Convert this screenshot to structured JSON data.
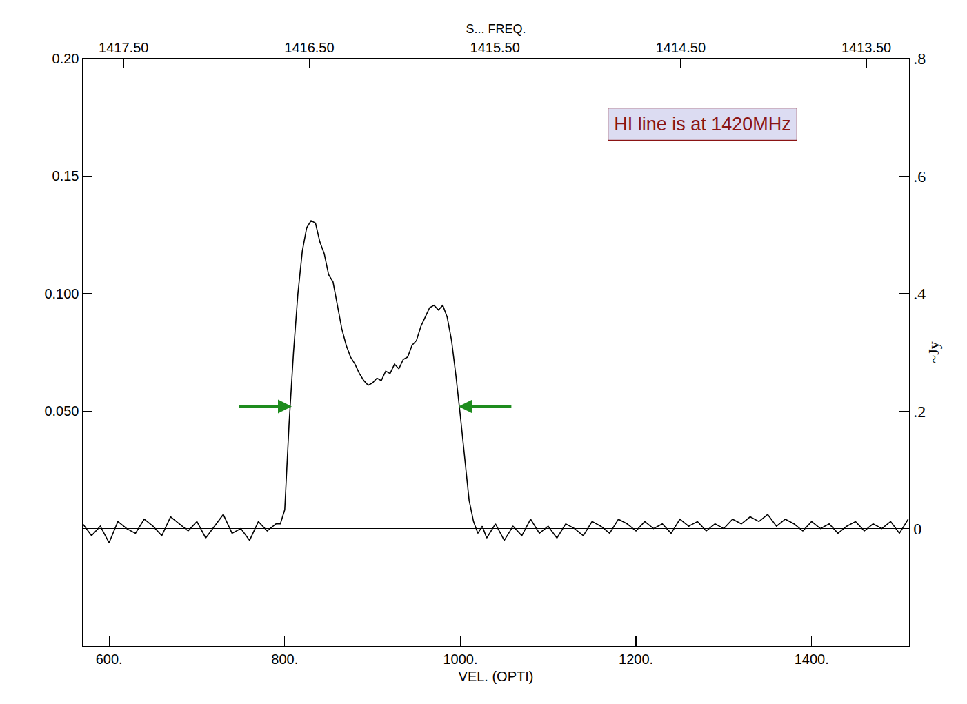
{
  "chart_data": {
    "type": "line",
    "color": "#000000",
    "xlabel": "VEL. (OPTI)",
    "x": [
      570,
      580,
      590,
      600,
      610,
      620,
      630,
      640,
      650,
      660,
      670,
      680,
      690,
      700,
      710,
      720,
      730,
      740,
      750,
      760,
      770,
      780,
      790,
      795,
      800,
      805,
      810,
      815,
      820,
      825,
      830,
      835,
      840,
      845,
      850,
      855,
      860,
      865,
      870,
      875,
      880,
      885,
      890,
      895,
      900,
      905,
      910,
      915,
      920,
      925,
      930,
      935,
      940,
      945,
      950,
      955,
      960,
      965,
      970,
      975,
      980,
      985,
      990,
      995,
      1000,
      1005,
      1010,
      1015,
      1020,
      1025,
      1030,
      1040,
      1050,
      1060,
      1070,
      1080,
      1090,
      1100,
      1110,
      1120,
      1130,
      1140,
      1150,
      1160,
      1170,
      1180,
      1190,
      1200,
      1210,
      1220,
      1230,
      1240,
      1250,
      1260,
      1270,
      1280,
      1290,
      1300,
      1310,
      1320,
      1330,
      1340,
      1350,
      1360,
      1370,
      1380,
      1390,
      1400,
      1410,
      1420,
      1430,
      1440,
      1450,
      1460,
      1470,
      1480,
      1490,
      1500,
      1510
    ],
    "values": [
      0.002,
      -0.003,
      0.001,
      -0.006,
      0.003,
      0.0,
      -0.002,
      0.004,
      0.001,
      -0.003,
      0.005,
      0.002,
      -0.001,
      0.003,
      -0.004,
      0.001,
      0.006,
      -0.002,
      0.0,
      -0.005,
      0.003,
      -0.001,
      0.002,
      0.002,
      0.008,
      0.045,
      0.075,
      0.1,
      0.118,
      0.128,
      0.131,
      0.13,
      0.122,
      0.117,
      0.108,
      0.105,
      0.095,
      0.085,
      0.078,
      0.073,
      0.07,
      0.066,
      0.063,
      0.061,
      0.062,
      0.064,
      0.063,
      0.067,
      0.066,
      0.07,
      0.068,
      0.072,
      0.073,
      0.078,
      0.08,
      0.086,
      0.09,
      0.094,
      0.095,
      0.093,
      0.095,
      0.09,
      0.08,
      0.065,
      0.048,
      0.03,
      0.012,
      0.003,
      -0.002,
      0.001,
      -0.004,
      0.002,
      -0.005,
      0.001,
      -0.003,
      0.004,
      -0.002,
      0.001,
      -0.004,
      0.002,
      0.0,
      -0.003,
      0.003,
      0.001,
      -0.002,
      0.004,
      0.002,
      -0.001,
      0.003,
      0.0,
      0.002,
      -0.002,
      0.004,
      0.001,
      0.003,
      -0.001,
      0.002,
      0.0,
      0.004,
      0.002,
      0.005,
      0.003,
      0.006,
      0.001,
      0.004,
      0.002,
      -0.001,
      0.003,
      0.0,
      0.002,
      -0.002,
      0.001,
      0.003,
      -0.001,
      0.002,
      0.0,
      0.003,
      -0.002,
      0.004
    ],
    "xlim": [
      570,
      1511
    ],
    "xticks": [
      {
        "value": 600,
        "label": "600."
      },
      {
        "value": 800,
        "label": "800."
      },
      {
        "value": 1000,
        "label": "1000."
      },
      {
        "value": 1200,
        "label": "1200."
      },
      {
        "value": 1400,
        "label": "1400."
      }
    ],
    "ylim": [
      -0.05,
      0.2
    ],
    "yticks": [
      {
        "value": 0.05,
        "label": "0.050"
      },
      {
        "value": 0.1,
        "label": "0.100"
      },
      {
        "value": 0.15,
        "label": "0.15"
      },
      {
        "value": 0.2,
        "label": "0.20"
      }
    ],
    "x2label": "S... FREQ.",
    "x2lim": [
      1417.72,
      1413.27
    ],
    "x2ticks": [
      {
        "value": 1417.5,
        "label": "1417.50"
      },
      {
        "value": 1416.5,
        "label": "1416.50"
      },
      {
        "value": 1415.5,
        "label": "1415.50"
      },
      {
        "value": 1414.5,
        "label": "1414.50"
      },
      {
        "value": 1413.5,
        "label": "1413.50"
      }
    ],
    "y2label": "~Jy",
    "y2lim": [
      -0.2,
      0.8
    ],
    "y2ticks": [
      0,
      {
        "value": 0.2,
        "label": ".2"
      },
      {
        "value": 0.4,
        "label": ".4"
      },
      {
        "value": 0.6,
        "label": ".6"
      },
      {
        "value": 0.8,
        "label": ".8"
      }
    ],
    "annotations": [
      {
        "text": "HI line is at 1420MHz"
      }
    ],
    "arrows": [
      {
        "x": 808,
        "y": 0.052,
        "color": "#1e8c1e"
      },
      {
        "x": 998,
        "y": 0.052,
        "color": "#1e8c1e"
      }
    ],
    "grid": false
  }
}
